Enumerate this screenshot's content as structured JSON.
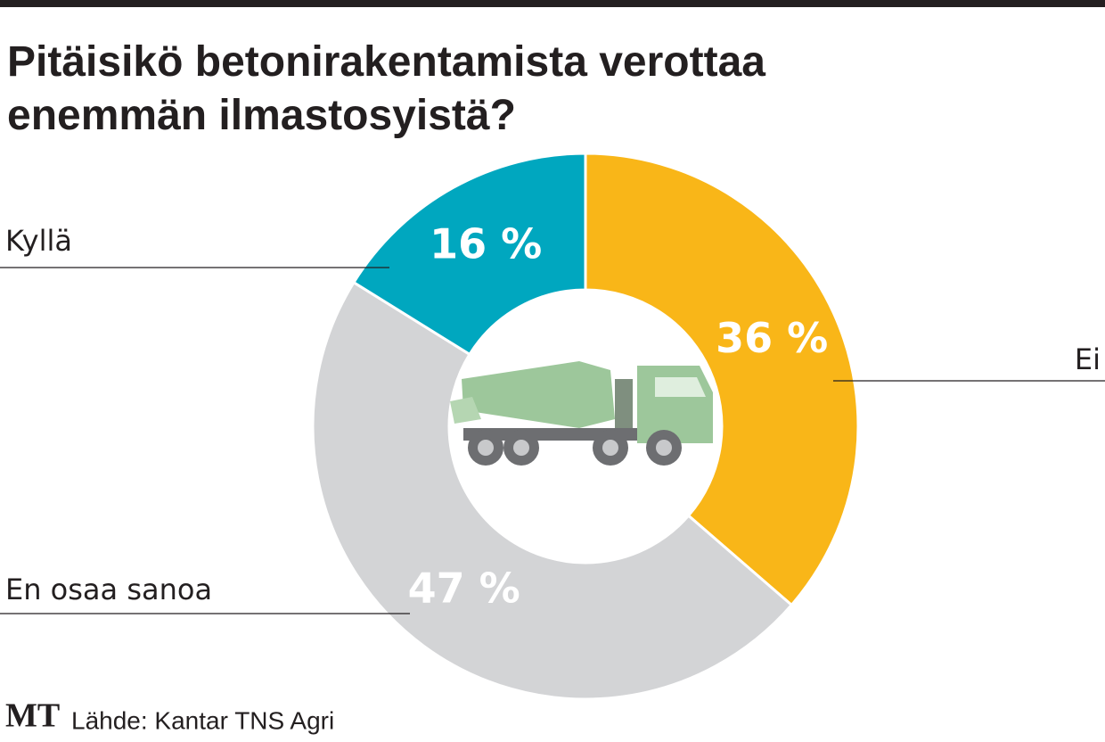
{
  "chart_data": {
    "type": "pie",
    "donut": true,
    "title": "Pitäisikö betonirakentamista verottaa enemmän ilmastosyistä?",
    "categories": [
      "Ei",
      "En osaa sanoa",
      "Kyllä"
    ],
    "values": [
      36,
      47,
      16
    ],
    "value_labels": [
      "36 %",
      "47 %",
      "16 %"
    ],
    "colors": [
      "#f9b618",
      "#d3d4d6",
      "#00a7bf"
    ],
    "logo": "MT",
    "source": "Lähde: Kantar TNS Agri"
  }
}
